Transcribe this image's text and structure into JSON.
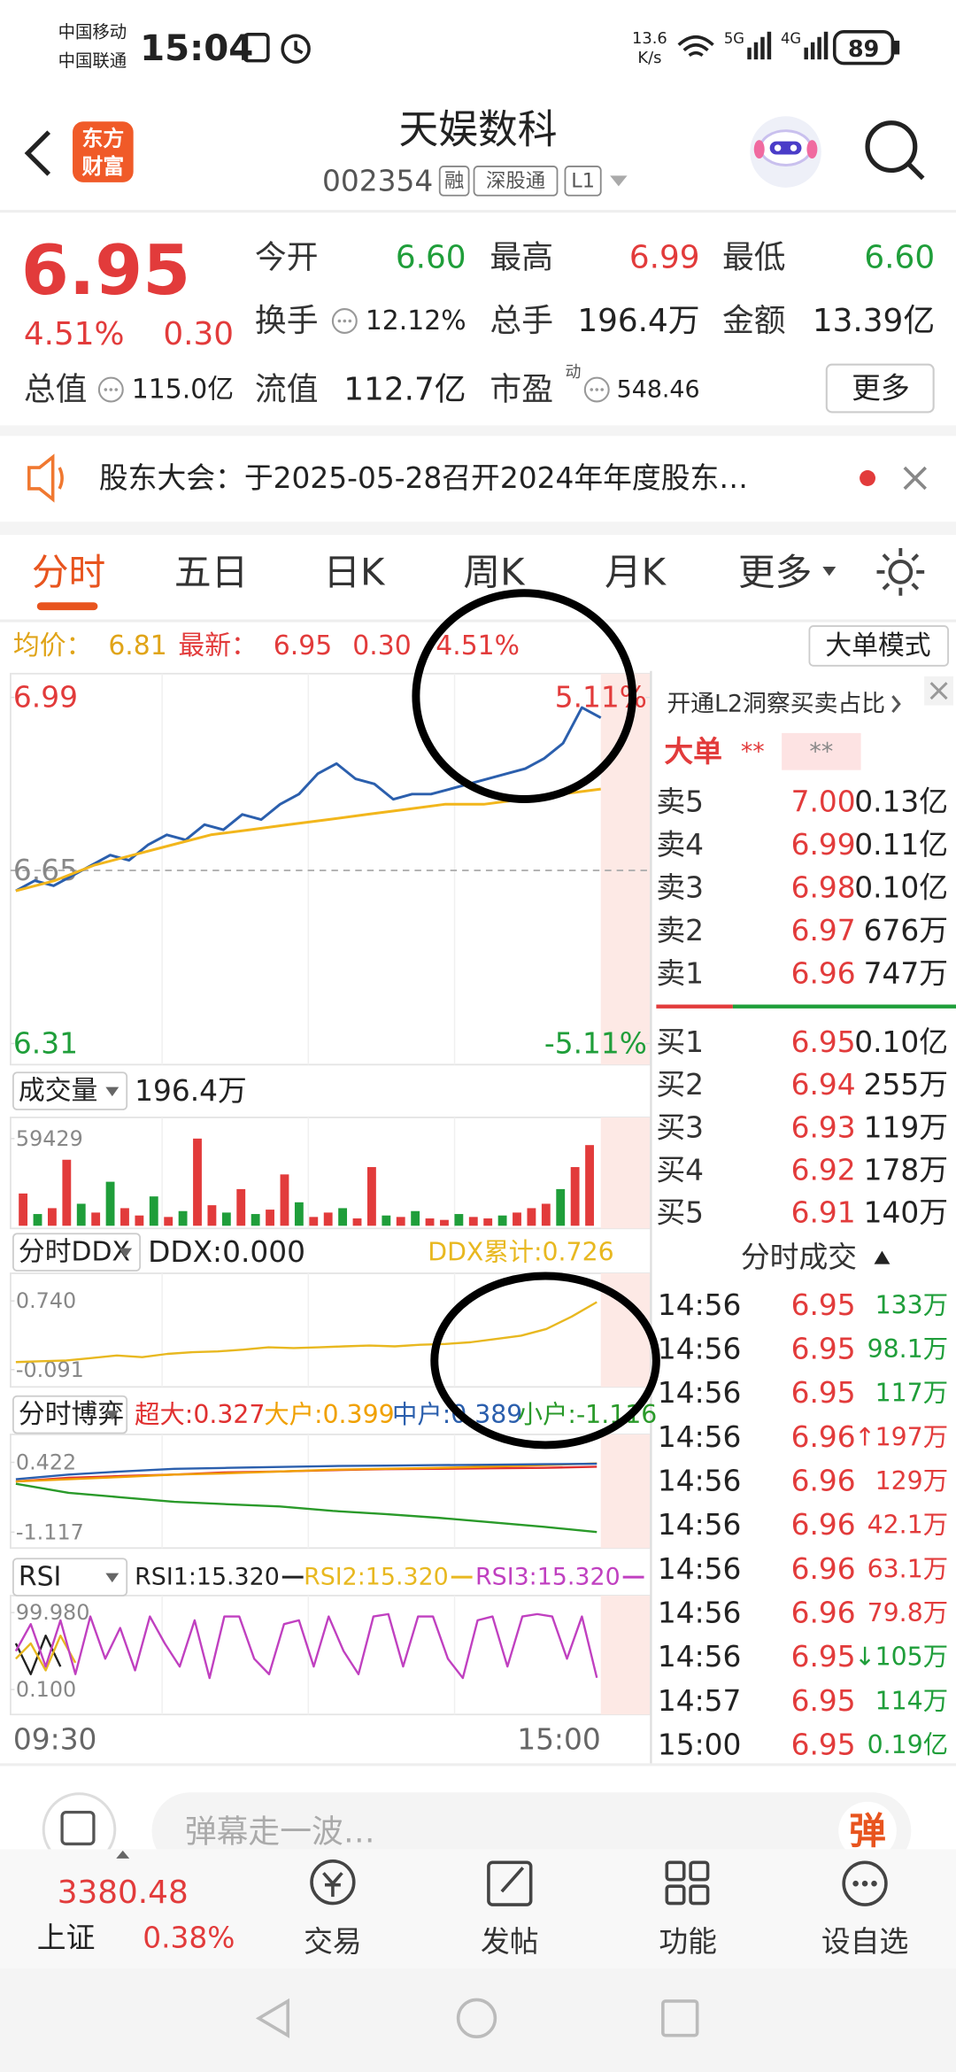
{
  "status_bar": {
    "carrier_1": "中国移动",
    "carrier_2": "中国联通",
    "time": "15:04",
    "speed": "13.6",
    "speed_unit": "K/s",
    "network_1": "5G",
    "network_2": "4G",
    "battery": "89"
  },
  "header": {
    "logo": [
      "东方",
      "财富"
    ],
    "name": "天娱数科",
    "code": "002354",
    "tags": [
      "融",
      "深股通",
      "L1"
    ]
  },
  "quote": {
    "price": "6.95",
    "change_pct": "4.51%",
    "change": "0.30",
    "fields": [
      {
        "label": "今开",
        "value": "6.60"
      },
      {
        "label": "最高",
        "value": "6.99"
      },
      {
        "label": "最低",
        "value": "6.60"
      },
      {
        "label": "换手",
        "value": "12.12%"
      },
      {
        "label": "总手",
        "value": "196.4万"
      },
      {
        "label": "金额",
        "value": "13.39亿"
      },
      {
        "label": "总值",
        "value": "115.0亿"
      },
      {
        "label": "流值",
        "value": "112.7亿"
      },
      {
        "label": "市盈",
        "value": "548.46"
      }
    ],
    "pe_badge": "动",
    "more": "更多"
  },
  "notice": {
    "text": "股东大会：于2025-05-28召开2024年年度股东…"
  },
  "tabs": [
    "分时",
    "五日",
    "日K",
    "周K",
    "月K",
    "更多"
  ],
  "info_bar": {
    "avg_label": "均价：",
    "avg": "6.81",
    "latest_label": "最新：",
    "latest": "6.95",
    "change": "0.30",
    "change_pct": "4.51%",
    "mode_button": "大单模式"
  },
  "chart_data": [
    {
      "type": "line",
      "series": [
        {
          "color": "#2b5fad",
          "values": [
            6.61,
            6.63,
            6.62,
            6.64,
            6.66,
            6.68,
            6.67,
            6.7,
            6.72,
            6.71,
            6.74,
            6.73,
            6.76,
            6.75,
            6.78,
            6.8,
            6.84,
            6.86,
            6.83,
            6.82,
            6.79,
            6.8,
            6.8,
            6.81,
            6.82,
            6.83,
            6.84,
            6.85,
            6.87,
            6.9,
            6.97,
            6.95
          ]
        },
        {
          "color": "#f2b61c",
          "values": [
            6.61,
            6.63,
            6.66,
            6.68,
            6.7,
            6.72,
            6.73,
            6.74,
            6.75,
            6.76,
            6.77,
            6.78,
            6.78,
            6.79,
            6.8,
            6.81
          ]
        }
      ],
      "ylim": [
        6.31,
        6.99
      ],
      "yticks": [
        6.31,
        6.65,
        6.99
      ],
      "y2lim": [
        -5.11,
        5.11
      ],
      "y2ticks": [
        {
          "value": -5.11,
          "label": "-5.11%"
        },
        {
          "value": 5.11,
          "label": "5.11%"
        }
      ],
      "x_labels": [
        "09:30",
        "15:00"
      ]
    },
    {
      "type": "bar",
      "title": "成交量",
      "subtitle": "196.4万",
      "values": [
        22000,
        8000,
        12000,
        45000,
        15000,
        9000,
        30000,
        12000,
        7000,
        20000,
        6000,
        10000,
        59429,
        14000,
        9000,
        25000,
        8000,
        11000,
        35000,
        16000,
        6000,
        9000,
        12000,
        5000,
        40000,
        7000,
        6000,
        10000,
        5000,
        4000,
        8000,
        6000,
        5000,
        7000,
        9000,
        12000,
        15000,
        25000,
        40000,
        55000
      ],
      "up": [
        true,
        false,
        true,
        true,
        false,
        true,
        false,
        true,
        true,
        false,
        true,
        false,
        true,
        true,
        false,
        true,
        false,
        true,
        true,
        false,
        true,
        true,
        false,
        true,
        true,
        false,
        true,
        false,
        true,
        true,
        false,
        true,
        true,
        false,
        true,
        true,
        true,
        false,
        true,
        true
      ],
      "ylim": [
        0,
        59429
      ],
      "yticks": [
        59429
      ]
    },
    {
      "type": "line",
      "title": "分时DDX",
      "subtitle": "DDX:0.000",
      "series": [
        {
          "name": "DDX累计:0.726",
          "color": "#e8b820",
          "values": [
            0,
            0.01,
            0.02,
            0.05,
            0.08,
            0.06,
            0.1,
            0.12,
            0.13,
            0.15,
            0.18,
            0.17,
            0.18,
            0.19,
            0.2,
            0.19,
            0.21,
            0.22,
            0.24,
            0.28,
            0.32,
            0.4,
            0.55,
            0.726
          ]
        }
      ],
      "ylim": [
        -0.22,
        1.01
      ],
      "yticks": [
        -0.091,
        {
          "value": 0.74,
          "label": "0.740"
        }
      ]
    },
    {
      "type": "line",
      "title": "分时博弈",
      "series": [
        {
          "name": "超大:0.327",
          "color": "#e03030",
          "values": [
            0,
            0.08,
            0.12,
            0.15,
            0.2,
            0.22,
            0.25,
            0.27,
            0.28,
            0.29,
            0.3,
            0.327
          ]
        },
        {
          "name": "大户:0.399",
          "color": "#f0a000",
          "values": [
            0,
            0.05,
            0.1,
            0.15,
            0.18,
            0.22,
            0.26,
            0.28,
            0.3,
            0.33,
            0.36,
            0.399
          ]
        },
        {
          "name": "中户:0.389",
          "color": "#2b5fad",
          "values": [
            0.05,
            0.15,
            0.22,
            0.28,
            0.3,
            0.32,
            0.34,
            0.35,
            0.36,
            0.37,
            0.38,
            0.389
          ]
        },
        {
          "name": "小户:-1.116",
          "color": "#2a9a2a",
          "values": [
            -0.05,
            -0.25,
            -0.35,
            -0.45,
            -0.5,
            -0.55,
            -0.65,
            -0.72,
            -0.8,
            -0.9,
            -1.0,
            -1.116
          ]
        }
      ],
      "ylim": [
        -1.41,
        0.92
      ],
      "yticks": [
        -1.117,
        0.422
      ]
    },
    {
      "type": "line",
      "title": "RSI",
      "series": [
        {
          "name": "RSI1:15.320",
          "color": "#222222",
          "values": [
            60,
            20,
            70,
            30,
            null,
            null,
            null,
            null,
            null,
            null,
            null,
            null,
            null,
            null,
            null,
            null,
            null,
            null,
            null,
            null,
            null,
            null,
            null,
            null,
            null,
            null,
            null,
            null,
            null,
            null,
            null,
            null,
            null,
            null,
            null,
            null,
            null,
            null,
            null,
            null
          ]
        },
        {
          "name": "RSI2:15.320",
          "color": "#e8b820",
          "values": [
            40,
            60,
            25,
            70,
            35,
            null,
            null,
            null,
            null,
            null,
            null,
            null,
            null,
            null,
            null,
            null,
            null,
            null,
            null,
            null,
            null,
            null,
            null,
            null,
            null,
            null,
            null,
            null,
            null,
            null,
            null,
            null,
            null,
            null,
            null,
            null,
            null,
            null,
            null,
            null
          ]
        },
        {
          "name": "RSI3:15.320",
          "color": "#c040c0",
          "values": [
            50,
            85,
            30,
            90,
            20,
            95,
            40,
            80,
            25,
            95,
            60,
            30,
            90,
            15,
            95,
            95,
            40,
            20,
            85,
            90,
            30,
            95,
            50,
            20,
            95,
            98,
            30,
            95,
            95,
            40,
            15,
            90,
            95,
            30,
            95,
            98,
            95,
            40,
            95,
            15.32
          ]
        }
      ],
      "ylim": [
        -10,
        110
      ],
      "yticks": [
        {
          "value": 99.98,
          "label": "99.980"
        },
        {
          "value": 0.1,
          "label": "0.100"
        }
      ]
    }
  ],
  "order_book": {
    "l2_link": "开通L2洞察买卖占比",
    "big_order_label": "大单",
    "big_order_values": [
      "**",
      "**"
    ],
    "asks": [
      {
        "label": "卖5",
        "price": "7.00",
        "volume": "0.13亿"
      },
      {
        "label": "卖4",
        "price": "6.99",
        "volume": "0.11亿"
      },
      {
        "label": "卖3",
        "price": "6.98",
        "volume": "0.10亿"
      },
      {
        "label": "卖2",
        "price": "6.97",
        "volume": "676万"
      },
      {
        "label": "卖1",
        "price": "6.96",
        "volume": "747万"
      }
    ],
    "bids": [
      {
        "label": "买1",
        "price": "6.95",
        "volume": "0.10亿"
      },
      {
        "label": "买2",
        "price": "6.94",
        "volume": "255万"
      },
      {
        "label": "买3",
        "price": "6.93",
        "volume": "119万"
      },
      {
        "label": "买4",
        "price": "6.92",
        "volume": "178万"
      },
      {
        "label": "买5",
        "price": "6.91",
        "volume": "140万"
      }
    ]
  },
  "trades": {
    "title": "分时成交",
    "rows": [
      {
        "time": "14:56",
        "price": "6.95",
        "volume": "133万",
        "up": false
      },
      {
        "time": "14:56",
        "price": "6.95",
        "volume": "98.1万",
        "up": false
      },
      {
        "time": "14:56",
        "price": "6.95",
        "volume": "117万",
        "up": false
      },
      {
        "time": "14:56",
        "price": "6.96",
        "arrow": "↑",
        "volume": "197万",
        "up": true
      },
      {
        "time": "14:56",
        "price": "6.96",
        "volume": "129万",
        "up": true
      },
      {
        "time": "14:56",
        "price": "6.96",
        "volume": "42.1万",
        "up": true
      },
      {
        "time": "14:56",
        "price": "6.96",
        "volume": "63.1万",
        "up": true
      },
      {
        "time": "14:56",
        "price": "6.96",
        "volume": "79.8万",
        "up": true
      },
      {
        "time": "14:56",
        "price": "6.95",
        "arrow": "↓",
        "volume": "105万",
        "up": false
      },
      {
        "time": "14:57",
        "price": "6.95",
        "volume": "114万",
        "up": false
      },
      {
        "time": "15:00",
        "price": "6.95",
        "volume": "0.19亿",
        "up": false
      }
    ]
  },
  "comment": {
    "placeholder": "弹幕走一波…",
    "button": "弹"
  },
  "bottom_nav": {
    "index_value": "3380.48",
    "index_name": "上证",
    "index_change": "0.38%",
    "items": [
      "交易",
      "发帖",
      "功能",
      "设自选"
    ]
  }
}
